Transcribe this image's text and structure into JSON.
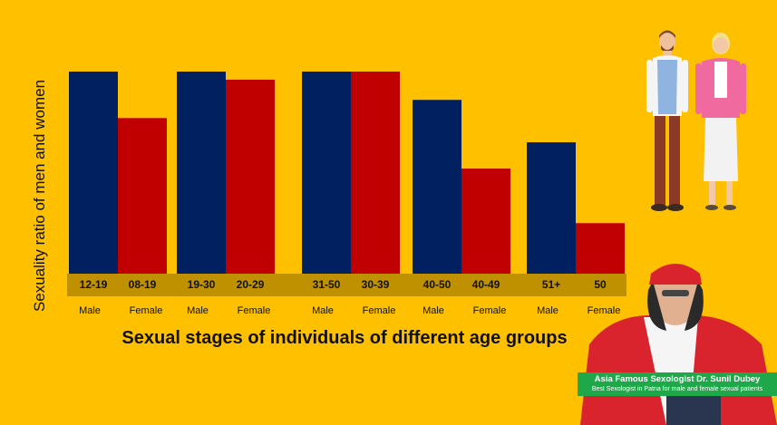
{
  "chart_data": {
    "type": "bar",
    "ylabel": "Sexuality ratio of men and women",
    "xlabel": "Sexual stages of individuals of different age groups",
    "ylim": [
      0,
      100
    ],
    "colors": {
      "male": "#002060",
      "female": "#C00000",
      "band": "#BF9000",
      "background": "#FFC000"
    },
    "groups": [
      {
        "bars": [
          {
            "sex": "Male",
            "age": "12-19",
            "value": 100
          },
          {
            "sex": "Female",
            "age": "08-19",
            "value": 77
          }
        ]
      },
      {
        "bars": [
          {
            "sex": "Male",
            "age": "19-30",
            "value": 100
          },
          {
            "sex": "Female",
            "age": "20-29",
            "value": 96
          }
        ]
      },
      {
        "bars": [
          {
            "sex": "Male",
            "age": "31-50",
            "value": 100
          },
          {
            "sex": "Female",
            "age": "30-39",
            "value": 100
          }
        ]
      },
      {
        "bars": [
          {
            "sex": "Male",
            "age": "40-50",
            "value": 86
          },
          {
            "sex": "Female",
            "age": "40-49",
            "value": 52
          }
        ]
      },
      {
        "bars": [
          {
            "sex": "Male",
            "age": "51+",
            "value": 65
          },
          {
            "sex": "Female",
            "age": "50",
            "value": 25
          }
        ]
      }
    ]
  },
  "caption": {
    "line1": "Asia Famous Sexologist Dr. Sunil Dubey",
    "line2": "Best Sexologist in Patna for male and female sexual patients"
  },
  "images": {
    "people": "couple-illustration",
    "doctor": "doctor-photo"
  }
}
